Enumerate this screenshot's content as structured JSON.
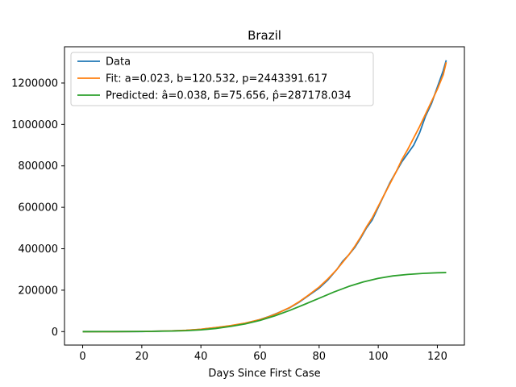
{
  "chart_data": {
    "type": "line",
    "title": "Brazil",
    "xlabel": "Days Since First Case",
    "ylabel": "",
    "xlim": [
      -6.15,
      129.15
    ],
    "ylim": [
      -65000,
      1375000
    ],
    "xticks": [
      0,
      20,
      40,
      60,
      80,
      100,
      120
    ],
    "yticks": [
      0,
      200000,
      400000,
      600000,
      800000,
      1000000,
      1200000
    ],
    "xtick_labels": [
      "0",
      "20",
      "40",
      "60",
      "80",
      "100",
      "120"
    ],
    "ytick_labels": [
      "0",
      "200000",
      "400000",
      "600000",
      "800000",
      "1000000",
      "1200000"
    ],
    "grid": false,
    "legend_position": "upper-left",
    "series": [
      {
        "name": "Data",
        "color": "#1f77b4",
        "x": [
          0,
          10,
          20,
          30,
          35,
          40,
          45,
          50,
          55,
          60,
          63,
          66,
          70,
          73,
          76,
          80,
          83,
          86,
          88,
          90,
          92,
          94,
          96,
          98,
          100,
          102,
          104,
          106,
          108,
          110,
          112,
          114,
          116,
          118,
          120,
          122,
          123
        ],
        "y": [
          0,
          0,
          500,
          3500,
          6000,
          11000,
          19000,
          28000,
          40000,
          58000,
          73000,
          90000,
          115000,
          140000,
          170000,
          210000,
          250000,
          300000,
          340000,
          370000,
          405000,
          450000,
          500000,
          540000,
          600000,
          660000,
          720000,
          770000,
          820000,
          860000,
          900000,
          960000,
          1040000,
          1100000,
          1180000,
          1260000,
          1310000
        ]
      },
      {
        "name": "Fit: a=0.023, b=120.532, p=2443391.617",
        "color": "#ff7f0e",
        "x": [
          0,
          10,
          20,
          30,
          35,
          40,
          45,
          50,
          55,
          60,
          63,
          66,
          70,
          73,
          76,
          80,
          83,
          86,
          88,
          90,
          92,
          94,
          96,
          98,
          100,
          102,
          104,
          106,
          108,
          110,
          112,
          114,
          116,
          118,
          120,
          122,
          123
        ],
        "y": [
          0,
          0,
          800,
          3500,
          6500,
          11500,
          19500,
          29000,
          41000,
          58000,
          72000,
          89000,
          116000,
          142000,
          172000,
          215000,
          255000,
          300000,
          335000,
          370000,
          410000,
          455000,
          505000,
          550000,
          605000,
          660000,
          715000,
          770000,
          830000,
          880000,
          935000,
          990000,
          1050000,
          1110000,
          1170000,
          1240000,
          1300000
        ]
      },
      {
        "name": "Predicted: â=0.038, ƃ=75.656, p̂=287178.034",
        "color": "#2ca02c",
        "x": [
          0,
          10,
          20,
          30,
          35,
          40,
          45,
          50,
          55,
          60,
          65,
          70,
          75,
          80,
          85,
          90,
          95,
          100,
          105,
          110,
          115,
          120,
          123
        ],
        "y": [
          0,
          200,
          700,
          2500,
          4500,
          8500,
          15000,
          25000,
          37000,
          54000,
          76000,
          102000,
          131000,
          161000,
          191000,
          218000,
          240000,
          257000,
          269000,
          276000,
          281000,
          284000,
          285000
        ]
      }
    ]
  }
}
